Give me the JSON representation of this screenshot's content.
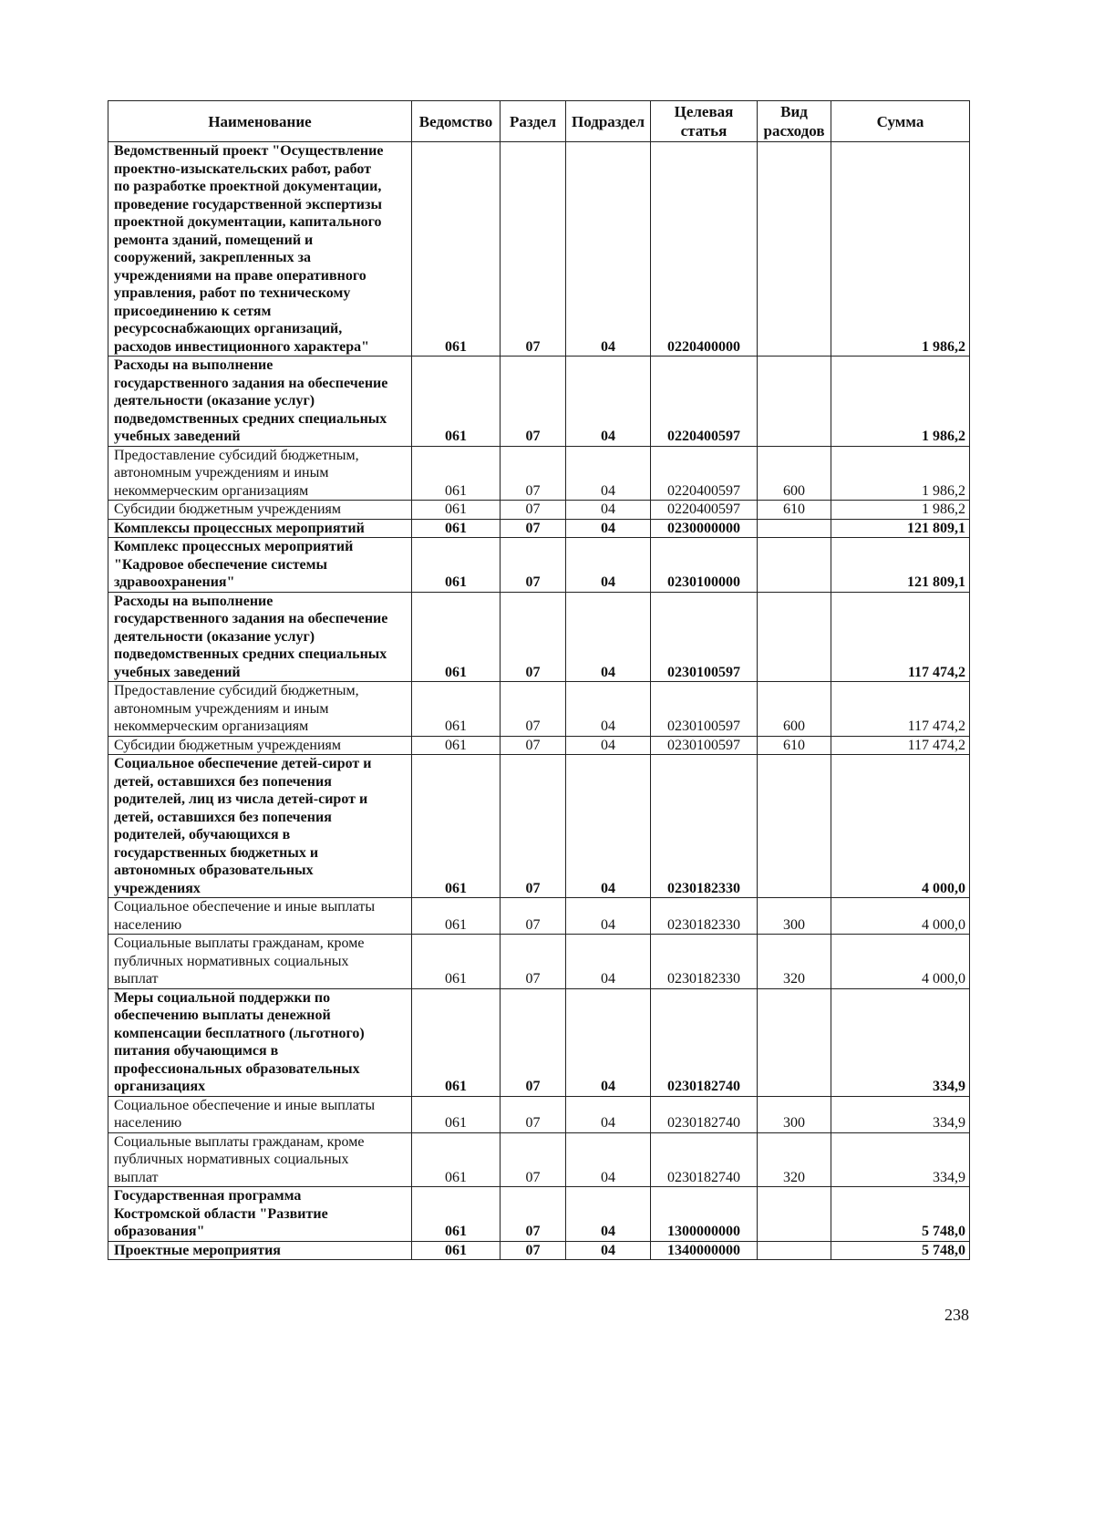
{
  "table": {
    "headers": [
      "Наименование",
      "Ведомство",
      "Раздел",
      "Подраздел",
      "Целевая статья",
      "Вид расходов",
      "Сумма"
    ],
    "rows": [
      {
        "bold": true,
        "name": "Ведомственный проект \"Осуществление\nпроектно-изыскательских работ, работ\nпо разработке проектной документации,\nпроведение государственной экспертизы\nпроектной документации, капитального\nремонта зданий, помещений и\nсооружений, закрепленных за\nучреждениями на праве оперативного\nуправления, работ по техническому\nприсоединению к сетям\nресурсоснабжающих организаций,\nрасходов инвестиционного характера\"",
        "ved": "061",
        "razdel": "07",
        "podrazdel": "04",
        "cs": "0220400000",
        "vr": "",
        "sum": "1 986,2"
      },
      {
        "bold": true,
        "name": "Расходы на выполнение\nгосударственного задания на обеспечение\nдеятельности (оказание услуг)\nподведомственных средних специальных\nучебных заведений",
        "ved": "061",
        "razdel": "07",
        "podrazdel": "04",
        "cs": "0220400597",
        "vr": "",
        "sum": "1 986,2"
      },
      {
        "bold": false,
        "name": "Предоставление субсидий бюджетным,\nавтономным учреждениям и иным\nнекоммерческим организациям",
        "ved": "061",
        "razdel": "07",
        "podrazdel": "04",
        "cs": "0220400597",
        "vr": "600",
        "sum": "1 986,2"
      },
      {
        "bold": false,
        "name": "Субсидии бюджетным учреждениям",
        "ved": "061",
        "razdel": "07",
        "podrazdel": "04",
        "cs": "0220400597",
        "vr": "610",
        "sum": "1 986,2"
      },
      {
        "bold": true,
        "name": "Комплексы процессных мероприятий",
        "ved": "061",
        "razdel": "07",
        "podrazdel": "04",
        "cs": "0230000000",
        "vr": "",
        "sum": "121 809,1"
      },
      {
        "bold": true,
        "name": "Комплекс процессных мероприятий\n\"Кадровое обеспечение системы\nздравоохранения\"",
        "ved": "061",
        "razdel": "07",
        "podrazdel": "04",
        "cs": "0230100000",
        "vr": "",
        "sum": "121 809,1"
      },
      {
        "bold": true,
        "name": "Расходы на выполнение\nгосударственного задания на обеспечение\nдеятельности (оказание услуг)\nподведомственных средних специальных\nучебных заведений",
        "ved": "061",
        "razdel": "07",
        "podrazdel": "04",
        "cs": "0230100597",
        "vr": "",
        "sum": "117 474,2"
      },
      {
        "bold": false,
        "name": "Предоставление субсидий бюджетным,\nавтономным учреждениям и иным\nнекоммерческим организациям",
        "ved": "061",
        "razdel": "07",
        "podrazdel": "04",
        "cs": "0230100597",
        "vr": "600",
        "sum": "117 474,2"
      },
      {
        "bold": false,
        "name": "Субсидии бюджетным учреждениям",
        "ved": "061",
        "razdel": "07",
        "podrazdel": "04",
        "cs": "0230100597",
        "vr": "610",
        "sum": "117 474,2"
      },
      {
        "bold": true,
        "name": "Социальное обеспечение детей-сирот и\nдетей, оставшихся без попечения\nродителей, лиц из числа детей-сирот и\nдетей, оставшихся без попечения\nродителей, обучающихся в\nгосударственных бюджетных и\nавтономных образовательных\nучреждениях",
        "ved": "061",
        "razdel": "07",
        "podrazdel": "04",
        "cs": "0230182330",
        "vr": "",
        "sum": "4 000,0"
      },
      {
        "bold": false,
        "name": "Социальное обеспечение и иные выплаты\nнаселению",
        "ved": "061",
        "razdel": "07",
        "podrazdel": "04",
        "cs": "0230182330",
        "vr": "300",
        "sum": "4 000,0"
      },
      {
        "bold": false,
        "name": "Социальные выплаты гражданам, кроме\nпубличных нормативных социальных\nвыплат",
        "ved": "061",
        "razdel": "07",
        "podrazdel": "04",
        "cs": "0230182330",
        "vr": "320",
        "sum": "4 000,0"
      },
      {
        "bold": true,
        "name": "Меры социальной поддержки по\nобеспечению выплаты денежной\nкомпенсации бесплатного (льготного)\nпитания обучающимся в\nпрофессиональных образовательных\nорганизациях",
        "ved": "061",
        "razdel": "07",
        "podrazdel": "04",
        "cs": "0230182740",
        "vr": "",
        "sum": "334,9"
      },
      {
        "bold": false,
        "name": "Социальное обеспечение и иные выплаты\nнаселению",
        "ved": "061",
        "razdel": "07",
        "podrazdel": "04",
        "cs": "0230182740",
        "vr": "300",
        "sum": "334,9"
      },
      {
        "bold": false,
        "name": "Социальные выплаты гражданам, кроме\nпубличных нормативных социальных\nвыплат",
        "ved": "061",
        "razdel": "07",
        "podrazdel": "04",
        "cs": "0230182740",
        "vr": "320",
        "sum": "334,9"
      },
      {
        "bold": true,
        "name": "Государственная программа\nКостромской области \"Развитие\nобразования\"",
        "ved": "061",
        "razdel": "07",
        "podrazdel": "04",
        "cs": "1300000000",
        "vr": "",
        "sum": "5 748,0"
      },
      {
        "bold": true,
        "name": "Проектные мероприятия",
        "ved": "061",
        "razdel": "07",
        "podrazdel": "04",
        "cs": "1340000000",
        "vr": "",
        "sum": "5 748,0"
      }
    ]
  },
  "page_number": "238"
}
